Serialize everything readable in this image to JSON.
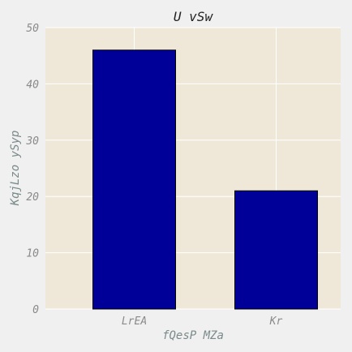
{
  "chart_data": {
    "type": "bar",
    "title": "U vSw",
    "xlabel": "fQesP MZa",
    "ylabel": "KqjLzo ySyp",
    "categories": [
      "LrEA",
      "Kr"
    ],
    "values": [
      46,
      21
    ],
    "ylim": [
      0,
      50
    ],
    "yticks": [
      0,
      10,
      20,
      30,
      40,
      50
    ],
    "grid": true,
    "bar_color": "#000099",
    "plot_background": "#efe8d8",
    "figure_background": "#f0f0f0"
  }
}
